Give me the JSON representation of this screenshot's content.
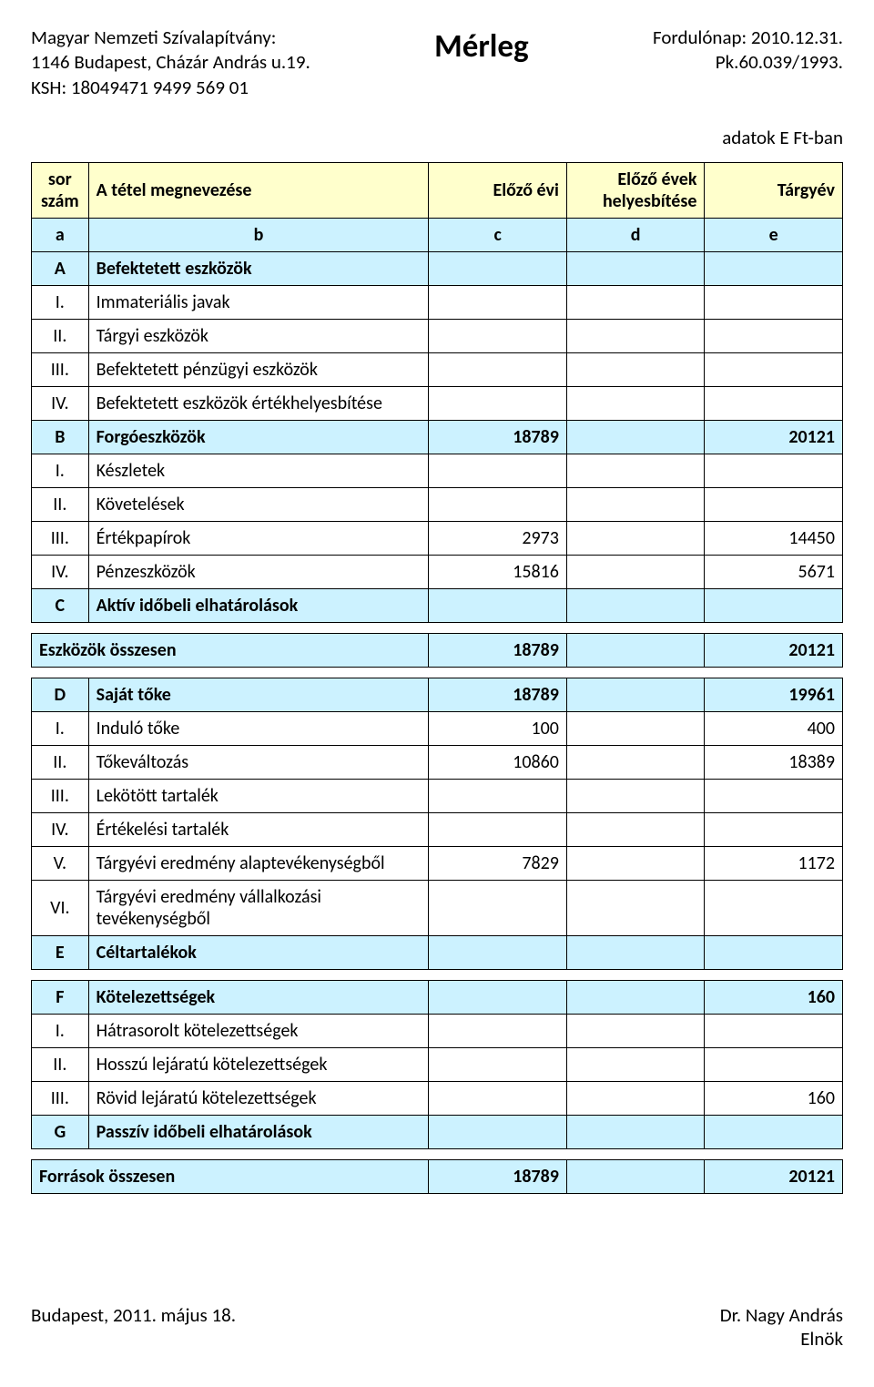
{
  "header": {
    "org_name": "Magyar Nemzeti Szívalapítvány:",
    "address": "1146 Budapest, Cházár András u.19.",
    "ksh": "KSH: 18049471 9499 569 01",
    "title": "Mérleg",
    "date_label": "Fordulónap: 2010.12.31.",
    "pk": "Pk.60.039/1993.",
    "units": "adatok E Ft-ban"
  },
  "colhdr": {
    "sor": "sor\nszám",
    "megnev": "A tétel megnevezése",
    "elozo": "Előző évi",
    "helyes": "Előző évek helyesbítése",
    "targy": "Tárgyév",
    "a": "a",
    "b": "b",
    "c": "c",
    "d": "d",
    "e": "e"
  },
  "rows": {
    "A": {
      "n": "A",
      "t": "Befektetett eszközök",
      "c": "",
      "d": "",
      "e": ""
    },
    "A1": {
      "n": "I.",
      "t": "Immateriális javak",
      "c": "",
      "d": "",
      "e": ""
    },
    "A2": {
      "n": "II.",
      "t": "Tárgyi eszközök",
      "c": "",
      "d": "",
      "e": ""
    },
    "A3": {
      "n": "III.",
      "t": "Befektetett pénzügyi eszközök",
      "c": "",
      "d": "",
      "e": ""
    },
    "A4": {
      "n": "IV.",
      "t": "Befektetett eszközök értékhelyesbítése",
      "c": "",
      "d": "",
      "e": ""
    },
    "B": {
      "n": "B",
      "t": "Forgóeszközök",
      "c": "18789",
      "d": "",
      "e": "20121"
    },
    "B1": {
      "n": "I.",
      "t": "Készletek",
      "c": "",
      "d": "",
      "e": ""
    },
    "B2": {
      "n": "II.",
      "t": "Követelések",
      "c": "",
      "d": "",
      "e": ""
    },
    "B3": {
      "n": "III.",
      "t": "Értékpapírok",
      "c": "2973",
      "d": "",
      "e": "14450"
    },
    "B4": {
      "n": "IV.",
      "t": "Pénzeszközök",
      "c": "15816",
      "d": "",
      "e": "5671"
    },
    "C": {
      "n": "C",
      "t": "Aktív időbeli elhatárolások",
      "c": "",
      "d": "",
      "e": ""
    },
    "ESZ": {
      "n": "",
      "t": "Eszközök összesen",
      "c": "18789",
      "d": "",
      "e": "20121"
    },
    "D": {
      "n": "D",
      "t": "Saját tőke",
      "c": "18789",
      "d": "",
      "e": "19961"
    },
    "D1": {
      "n": "I.",
      "t": "Induló tőke",
      "c": "100",
      "d": "",
      "e": "400"
    },
    "D2": {
      "n": "II.",
      "t": "Tőkeváltozás",
      "c": "10860",
      "d": "",
      "e": "18389"
    },
    "D3": {
      "n": "III.",
      "t": "Lekötött tartalék",
      "c": "",
      "d": "",
      "e": ""
    },
    "D4": {
      "n": "IV.",
      "t": "Értékelési tartalék",
      "c": "",
      "d": "",
      "e": ""
    },
    "D5": {
      "n": "V.",
      "t": "Tárgyévi eredmény alaptevékenységből",
      "c": "7829",
      "d": "",
      "e": "1172"
    },
    "D6": {
      "n": "VI.",
      "t": "Tárgyévi eredmény vállalkozási tevékenységből",
      "c": "",
      "d": "",
      "e": ""
    },
    "E": {
      "n": "E",
      "t": "Céltartalékok",
      "c": "",
      "d": "",
      "e": ""
    },
    "F": {
      "n": "F",
      "t": "Kötelezettségek",
      "c": "",
      "d": "",
      "e": "160"
    },
    "F1": {
      "n": "I.",
      "t": "Hátrasorolt kötelezettségek",
      "c": "",
      "d": "",
      "e": ""
    },
    "F2": {
      "n": "II.",
      "t": "Hosszú lejáratú kötelezettségek",
      "c": "",
      "d": "",
      "e": ""
    },
    "F3": {
      "n": "III.",
      "t": "Rövid lejáratú kötelezettségek",
      "c": "",
      "d": "",
      "e": "160"
    },
    "G": {
      "n": "G",
      "t": "Passzív időbeli elhatárolások",
      "c": "",
      "d": "",
      "e": ""
    },
    "FOR": {
      "n": "",
      "t": "Források összesen",
      "c": "18789",
      "d": "",
      "e": "20121"
    }
  },
  "footer": {
    "left": "Budapest, 2011. május 18.",
    "right_name": "Dr. Nagy András",
    "right_title": "Elnök"
  },
  "colors": {
    "header_bg": "#ffffcc",
    "section_bg": "#ccf2ff",
    "border": "#000000",
    "page_bg": "#ffffff"
  }
}
